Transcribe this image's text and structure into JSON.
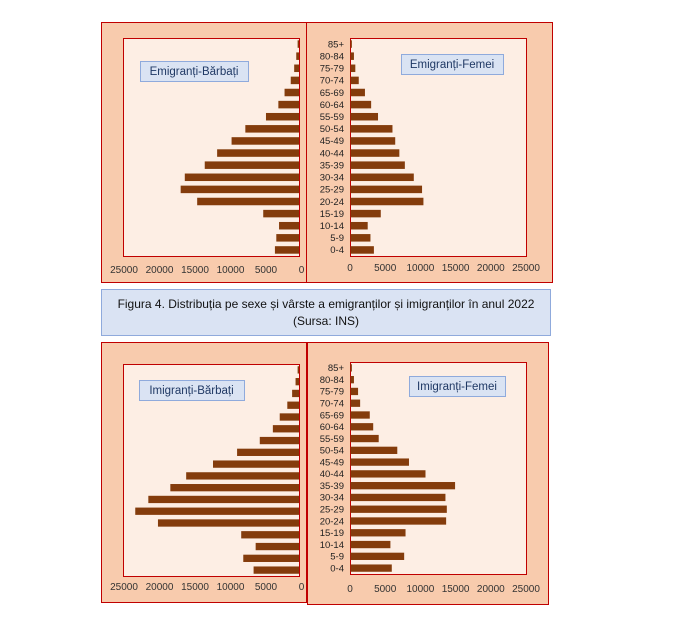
{
  "caption": "Figura 4. Distribuția pe sexe și vârste a emigranților  și imigranților  în anul 2022 (Sursa: INS)",
  "chart_data": [
    {
      "type": "bar",
      "title": "Emigranți-Bărbați",
      "orientation": "horizontal",
      "x_reversed": true,
      "categories": [
        "0-4",
        "5-9",
        "10-14",
        "15-19",
        "20-24",
        "25-29",
        "30-34",
        "35-39",
        "40-44",
        "45-49",
        "50-54",
        "55-59",
        "60-64",
        "65-69",
        "70-74",
        "75-79",
        "80-84",
        "85+"
      ],
      "values": [
        3500,
        3300,
        2900,
        5200,
        14800,
        17200,
        16600,
        13700,
        11900,
        9800,
        7800,
        4800,
        3000,
        2100,
        1200,
        700,
        400,
        200
      ],
      "xlim": [
        0,
        25000
      ],
      "xticks": [
        "25000",
        "20000",
        "15000",
        "10000",
        "5000",
        "0"
      ]
    },
    {
      "type": "bar",
      "title": "Emigranți-Femei",
      "orientation": "horizontal",
      "categories": [
        "0-4",
        "5-9",
        "10-14",
        "15-19",
        "20-24",
        "25-29",
        "30-34",
        "35-39",
        "40-44",
        "45-49",
        "50-54",
        "55-59",
        "60-64",
        "65-69",
        "70-74",
        "75-79",
        "80-84",
        "85+"
      ],
      "values": [
        3400,
        2900,
        2500,
        4400,
        10600,
        10400,
        9200,
        7900,
        7100,
        6500,
        6100,
        4000,
        3000,
        2100,
        1200,
        700,
        500,
        200
      ],
      "xlim": [
        0,
        25000
      ],
      "xticks": [
        "0",
        "5000",
        "10000",
        "15000",
        "20000",
        "25000"
      ]
    },
    {
      "type": "bar",
      "title": "Imigranți-Bărbați",
      "orientation": "horizontal",
      "x_reversed": true,
      "categories": [
        "0-4",
        "5-9",
        "10-14",
        "15-19",
        "20-24",
        "25-29",
        "30-34",
        "35-39",
        "40-44",
        "45-49",
        "50-54",
        "55-59",
        "60-64",
        "65-69",
        "70-74",
        "75-79",
        "80-84",
        "85+"
      ],
      "values": [
        6600,
        8100,
        6300,
        8400,
        20500,
        23800,
        21900,
        18700,
        16400,
        12500,
        9000,
        5700,
        3800,
        2800,
        1700,
        1000,
        500,
        200
      ],
      "xlim": [
        0,
        25000
      ],
      "xticks": [
        "25000",
        "20000",
        "15000",
        "10000",
        "5000",
        "0"
      ]
    },
    {
      "type": "bar",
      "title": "Imigranți-Femei",
      "orientation": "horizontal",
      "categories": [
        "0-4",
        "5-9",
        "10-14",
        "15-19",
        "20-24",
        "25-29",
        "30-34",
        "35-39",
        "40-44",
        "45-49",
        "50-54",
        "55-59",
        "60-64",
        "65-69",
        "70-74",
        "75-79",
        "80-84",
        "85+"
      ],
      "values": [
        6000,
        7800,
        5800,
        8000,
        13900,
        14000,
        13800,
        15200,
        10900,
        8500,
        6800,
        4100,
        3300,
        2800,
        1400,
        1100,
        500,
        200
      ],
      "xlim": [
        0,
        25000
      ],
      "xticks": [
        "0",
        "5000",
        "10000",
        "15000",
        "20000",
        "25000"
      ]
    }
  ]
}
